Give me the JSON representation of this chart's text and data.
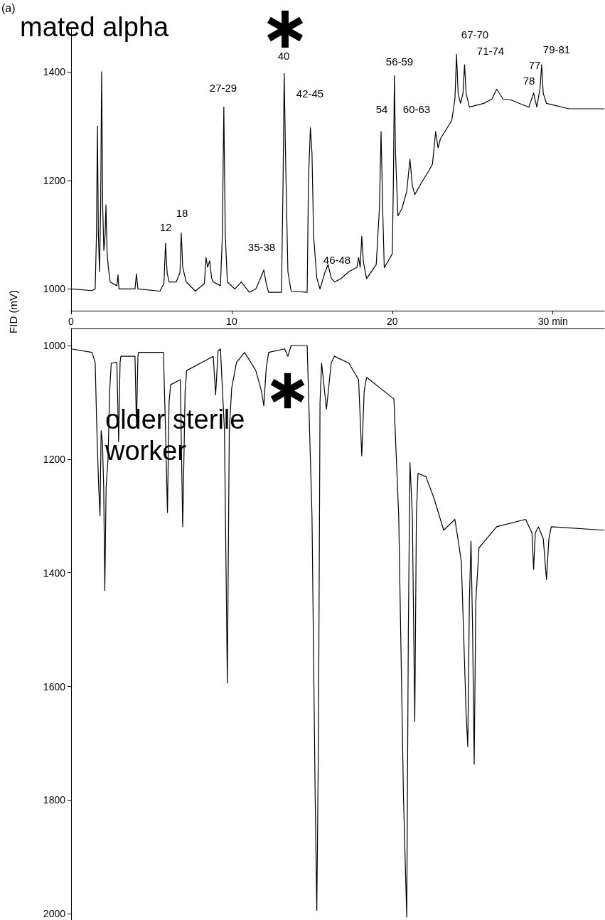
{
  "chart_data": [
    {
      "type": "line",
      "color": "#000000",
      "ylabel": "FID (mV)",
      "annotations": [
        "(a)",
        "mated alpha",
        "12",
        "18",
        "27-29",
        "35-38",
        "40",
        "42-45",
        "46-48",
        "54",
        "56-59",
        "60-63",
        "67-70",
        "71-74",
        "77",
        "78",
        "79-81"
      ],
      "x": [
        0,
        1.3,
        1.5,
        1.58,
        1.64,
        1.7,
        1.77,
        1.84,
        1.9,
        1.97,
        2.04,
        2.12,
        2.17,
        2.24,
        2.3,
        2.43,
        2.85,
        2.92,
        2.98,
        3.98,
        4.07,
        4.16,
        5.53,
        5.78,
        5.88,
        5.98,
        6.1,
        6.55,
        6.78,
        6.86,
        6.95,
        7.17,
        7.74,
        8.3,
        8.4,
        8.5,
        8.63,
        8.75,
        8.85,
        9.3,
        9.42,
        9.51,
        9.6,
        9.73,
        10.2,
        10.6,
        11.1,
        11.5,
        11.8,
        12.0,
        12.15,
        12.3,
        13.1,
        13.2,
        13.27,
        13.35,
        13.5,
        13.7,
        14.7,
        14.78,
        14.9,
        15.0,
        15.1,
        15.3,
        15.5,
        15.8,
        16.0,
        16.2,
        16.4,
        16.8,
        17.3,
        17.8,
        17.9,
        18.0,
        18.1,
        18.2,
        18.4,
        19.0,
        19.2,
        19.3,
        19.4,
        19.5,
        20.0,
        20.07,
        20.13,
        20.2,
        20.35,
        20.6,
        20.9,
        21.1,
        21.25,
        21.4,
        21.9,
        22.3,
        22.5,
        22.7,
        22.85,
        23.0,
        23.7,
        23.9,
        24.0,
        24.1,
        24.25,
        24.4,
        24.5,
        24.6,
        24.8,
        25.7,
        26.2,
        26.5,
        26.9,
        27.4,
        28.5,
        28.8,
        29.0,
        29.2,
        29.3,
        29.4,
        29.6,
        31.0,
        33.2
      ],
      "values": [
        1000,
        997,
        1000,
        1100,
        1300,
        1100,
        1032,
        1150,
        1400,
        1150,
        1071,
        1100,
        1155,
        1070,
        1045,
        1013,
        1006,
        1026,
        1000,
        1000,
        1028,
        1000,
        996,
        1010,
        1084,
        1030,
        1013,
        1013,
        1030,
        1103,
        1040,
        1013,
        996,
        1010,
        1058,
        1040,
        1052,
        1020,
        1013,
        1006,
        1100,
        1335,
        1100,
        1013,
        1000,
        1013,
        994,
        1000,
        1020,
        1035,
        1010,
        994,
        994,
        1200,
        1397,
        1250,
        1032,
        996,
        994,
        1200,
        1297,
        1250,
        1097,
        1020,
        1000,
        1030,
        1045,
        1020,
        1013,
        1019,
        1032,
        1040,
        1058,
        1040,
        1097,
        1050,
        1019,
        1045,
        1150,
        1290,
        1150,
        1039,
        1065,
        1200,
        1393,
        1250,
        1135,
        1148,
        1180,
        1239,
        1190,
        1174,
        1200,
        1219,
        1230,
        1290,
        1260,
        1277,
        1310,
        1350,
        1432,
        1360,
        1342,
        1360,
        1413,
        1360,
        1335,
        1342,
        1350,
        1368,
        1350,
        1348,
        1335,
        1361,
        1335,
        1370,
        1413,
        1360,
        1342,
        1332,
        1332
      ],
      "xlim": [
        0,
        33.2
      ],
      "ylim": [
        960,
        1480
      ],
      "xticks": [
        0,
        10,
        20,
        {
          "value": 30,
          "label": "30 min"
        }
      ],
      "yticks": [
        1000,
        1200,
        1400
      ]
    },
    {
      "type": "line",
      "color": "#000000",
      "tick_labels": "y",
      "annotations": [
        "older sterile worker"
      ],
      "x": [
        0,
        1.3,
        1.5,
        1.6,
        1.72,
        1.8,
        1.87,
        1.95,
        2.03,
        2.1,
        2.18,
        2.3,
        2.4,
        2.5,
        2.85,
        2.96,
        3.05,
        3.1,
        3.98,
        4.07,
        4.16,
        4.2,
        5.75,
        5.88,
        6.0,
        6.1,
        6.2,
        6.8,
        6.95,
        7.1,
        7.2,
        8.85,
        9.0,
        9.15,
        9.3,
        9.55,
        9.73,
        9.85,
        10.0,
        10.3,
        10.8,
        11.5,
        11.85,
        12.0,
        12.15,
        12.3,
        13.3,
        13.5,
        13.7,
        14.7,
        15.0,
        15.2,
        15.3,
        15.4,
        15.5,
        15.6,
        15.9,
        16.2,
        16.4,
        17.3,
        17.9,
        18.1,
        18.25,
        18.4,
        20.1,
        20.4,
        20.7,
        20.9,
        21.0,
        21.1,
        21.25,
        21.4,
        21.5,
        21.6,
        22.1,
        22.6,
        23.2,
        23.9,
        24.3,
        24.6,
        24.7,
        24.8,
        24.9,
        25.0,
        25.1,
        25.2,
        25.4,
        26.5,
        28.3,
        28.7,
        28.8,
        28.9,
        29.1,
        29.4,
        29.6,
        29.75,
        29.9,
        33.2
      ],
      "values": [
        1006,
        1012,
        1030,
        1144,
        1250,
        1300,
        1150,
        1169,
        1250,
        1431,
        1250,
        1200,
        1080,
        1031,
        1030,
        1169,
        1030,
        1019,
        1019,
        1144,
        1019,
        1012,
        1012,
        1150,
        1294,
        1100,
        1069,
        1060,
        1319,
        1080,
        1044,
        1019,
        1087,
        1010,
        1006,
        1150,
        1594,
        1150,
        1075,
        1030,
        1012,
        1044,
        1080,
        1106,
        1040,
        1012,
        1006,
        1019,
        1000,
        1000,
        1300,
        1800,
        1994,
        1700,
        1100,
        1031,
        1112,
        1030,
        1019,
        1031,
        1060,
        1194,
        1080,
        1056,
        1094,
        1300,
        1800,
        2006,
        1500,
        1206,
        1300,
        1662,
        1300,
        1225,
        1231,
        1269,
        1325,
        1306,
        1380,
        1650,
        1706,
        1450,
        1344,
        1500,
        1737,
        1450,
        1356,
        1319,
        1306,
        1330,
        1394,
        1330,
        1319,
        1340,
        1412,
        1340,
        1319,
        1325
      ],
      "xlim": [
        0,
        33.2
      ],
      "ylim": [
        2011,
        970
      ],
      "yticks": [
        1000,
        1200,
        1400,
        1600,
        1800,
        2000
      ]
    }
  ]
}
